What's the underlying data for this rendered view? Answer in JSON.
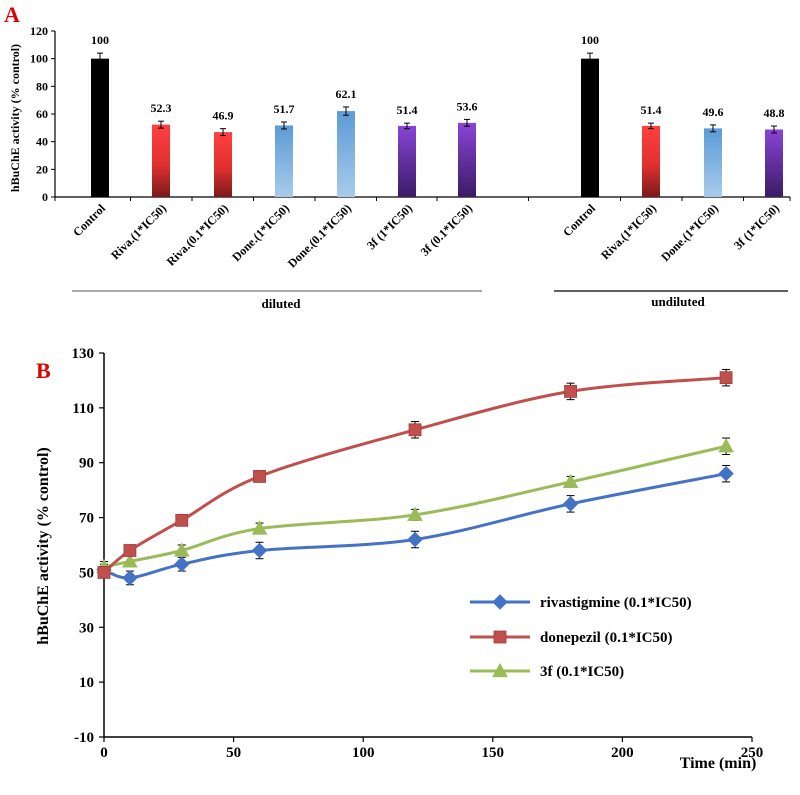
{
  "chart_data": [
    {
      "type": "bar",
      "panel": "A",
      "ylabel": "hBuChE activity (% control)",
      "ylim": [
        0,
        120
      ],
      "yticks": [
        0,
        20,
        40,
        60,
        80,
        100,
        120
      ],
      "categories": [
        "Control",
        "Riva.(1*IC50)",
        "Riva.(0.1*IC50)",
        "Done.(1*IC50)",
        "Done.(0.1*IC50)",
        "3f (1*IC50)",
        "3f (0.1*IC50)",
        "Control",
        "Riva.(1*IC50)",
        "Done.(1*IC50)",
        "3f (1*IC50)"
      ],
      "values": [
        100,
        52.3,
        46.9,
        51.7,
        62.1,
        51.4,
        53.6,
        100,
        51.4,
        49.6,
        48.8
      ],
      "value_labels": [
        "100",
        "52.3",
        "46.9",
        "51.7",
        "62.1",
        "51.4",
        "53.6",
        "100",
        "51.4",
        "49.6",
        "48.8"
      ],
      "errors": [
        4,
        2.5,
        2.5,
        2.5,
        3,
        2,
        2.5,
        4,
        2,
        2.5,
        2.5
      ],
      "bar_colors": [
        "black",
        "red",
        "red",
        "blue",
        "blue",
        "purple",
        "purple",
        "black",
        "red",
        "blue",
        "purple"
      ],
      "groups": [
        {
          "label": "diluted",
          "from": 0,
          "to": 6
        },
        {
          "label": "undiluted",
          "from": 7,
          "to": 10
        }
      ],
      "grid": false
    },
    {
      "type": "line",
      "panel": "B",
      "xlabel": "Time (min)",
      "ylabel": "hBuChE activity (% control)",
      "xlim": [
        0,
        250
      ],
      "ylim": [
        -10,
        130
      ],
      "xticks": [
        0,
        50,
        100,
        150,
        200,
        250
      ],
      "yticks": [
        -10,
        10,
        30,
        50,
        70,
        90,
        110,
        130
      ],
      "x": [
        0,
        10,
        30,
        60,
        120,
        180,
        240
      ],
      "series": [
        {
          "name": "rivastigmine (0.1*IC50)",
          "marker": "diamond",
          "color": "#4472c4",
          "values": [
            51,
            48,
            53,
            58,
            62,
            75,
            86
          ],
          "errors": [
            2,
            2.5,
            2.5,
            3,
            3,
            3,
            3
          ]
        },
        {
          "name": "donepezil (0.1*IC50)",
          "marker": "square",
          "color": "#c0504d",
          "values": [
            50,
            58,
            69,
            85,
            102,
            116,
            121
          ],
          "errors": [
            2,
            2,
            2,
            2,
            3,
            3,
            3
          ]
        },
        {
          "name": "3f (0.1*IC50)",
          "marker": "triangle",
          "color": "#9bbb59",
          "values": [
            52,
            54,
            58,
            66,
            71,
            83,
            96
          ],
          "errors": [
            2,
            2,
            2,
            2,
            2,
            2,
            3
          ]
        }
      ],
      "legend_position": "bottom-right",
      "grid": false
    }
  ],
  "colors": {
    "black_bar": "#000000",
    "red_bar": "#f03c3c",
    "red_bar_dark": "#8a1e1e",
    "blue_bar": "#5b9bd5",
    "blue_bar_light": "#9cc3e6",
    "purple_bar": "#7a3fc0",
    "purple_bar_dark": "#3d1f6b",
    "panel_letter": "#e00000"
  },
  "panels": {
    "a": "A",
    "b": "B"
  }
}
